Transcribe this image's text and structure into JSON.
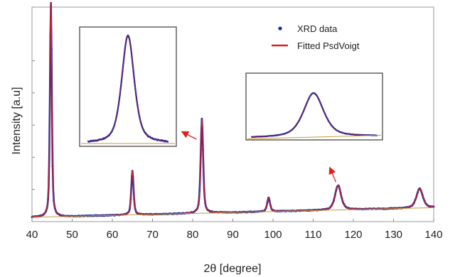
{
  "chart_data": {
    "type": "line",
    "xlabel": "2θ [degree]",
    "ylabel": "Intensity [a.u]",
    "xlim": [
      40,
      140
    ],
    "x_ticks": [
      "40",
      "50",
      "60",
      "70",
      "80",
      "90",
      "100",
      "110",
      "120",
      "130",
      "140"
    ],
    "ylim": [
      0,
      1
    ],
    "grid": false,
    "legend_position": "top-right",
    "series": [
      {
        "name": "XRD data",
        "style": "points",
        "color": "#1a2a9c"
      },
      {
        "name": "Fitted PsdVoigt",
        "style": "line",
        "color": "#e02020"
      }
    ],
    "background": {
      "start": 0.02,
      "end": 0.065
    },
    "peaks": [
      {
        "center": 44.7,
        "height": 1.0,
        "width": 0.28
      },
      {
        "center": 65.0,
        "height": 0.205,
        "width": 0.34
      },
      {
        "center": 82.3,
        "height": 0.44,
        "width": 0.37
      },
      {
        "center": 98.9,
        "height": 0.065,
        "width": 0.42
      },
      {
        "center": 116.2,
        "height": 0.115,
        "width": 0.9
      },
      {
        "center": 136.5,
        "height": 0.09,
        "width": 0.95
      }
    ],
    "insets": [
      {
        "peak_center": 44.7,
        "x_window": [
          43.2,
          46.2
        ],
        "arrow_to": 82.0
      },
      {
        "peak_center": 116.2,
        "x_window": [
          111.5,
          121.0
        ],
        "arrow_to": 116.0
      }
    ]
  }
}
